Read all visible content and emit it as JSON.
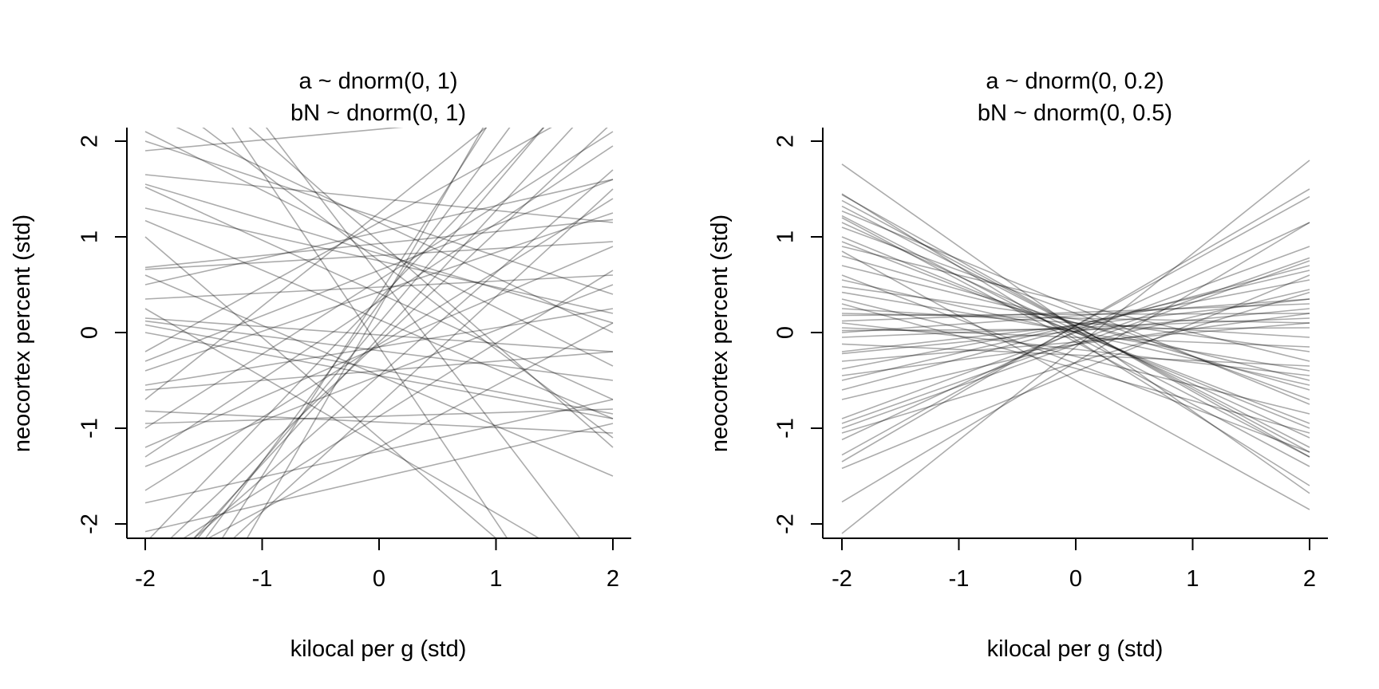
{
  "chart_data": [
    {
      "type": "line",
      "title": [
        "a ~ dnorm(0, 1)",
        "bN ~ dnorm(0, 1)"
      ],
      "xlabel": "kilocal per g (std)",
      "ylabel": "neocortex percent (std)",
      "xlim": [
        -2,
        2
      ],
      "ylim": [
        -2,
        2
      ],
      "xticks": [
        "-2",
        "-1",
        "0",
        "1",
        "2"
      ],
      "yticks": [
        "-2",
        "-1",
        "0",
        "1",
        "2"
      ],
      "grid": false,
      "line_color": "#000000",
      "line_opacity": 0.33,
      "series": [
        {
          "x": [
            -2,
            2
          ],
          "y": [
            1.9,
            2.35
          ]
        },
        {
          "x": [
            -2,
            2
          ],
          "y": [
            1.65,
            1.15
          ]
        },
        {
          "x": [
            -2,
            2
          ],
          "y": [
            1.55,
            0.1
          ]
        },
        {
          "x": [
            -2,
            2
          ],
          "y": [
            1.52,
            -0.7
          ]
        },
        {
          "x": [
            -2,
            2
          ],
          "y": [
            1.17,
            -0.9
          ]
        },
        {
          "x": [
            -2,
            2
          ],
          "y": [
            0.68,
            1.18
          ]
        },
        {
          "x": [
            -2,
            2
          ],
          "y": [
            0.66,
            0.95
          ]
        },
        {
          "x": [
            -2,
            2
          ],
          "y": [
            0.6,
            -1.5
          ]
        },
        {
          "x": [
            -2,
            2
          ],
          "y": [
            0.35,
            0.6
          ]
        },
        {
          "x": [
            -2,
            2
          ],
          "y": [
            0.25,
            -2.6
          ]
        },
        {
          "x": [
            -2,
            2
          ],
          "y": [
            0.15,
            -0.2
          ]
        },
        {
          "x": [
            -2,
            2
          ],
          "y": [
            0.12,
            -0.5
          ]
        },
        {
          "x": [
            -2,
            2
          ],
          "y": [
            0.08,
            -0.85
          ]
        },
        {
          "x": [
            -2,
            2
          ],
          "y": [
            -0.3,
            1.6
          ]
        },
        {
          "x": [
            -2,
            2
          ],
          "y": [
            -0.4,
            1.25
          ]
        },
        {
          "x": [
            -2,
            2
          ],
          "y": [
            -0.55,
            0.25
          ]
        },
        {
          "x": [
            -2,
            2
          ],
          "y": [
            -0.82,
            -1.05
          ]
        },
        {
          "x": [
            -2,
            2
          ],
          "y": [
            -0.95,
            -0.8
          ]
        },
        {
          "x": [
            -2,
            2
          ],
          "y": [
            -1.0,
            2.1
          ]
        },
        {
          "x": [
            -2,
            2
          ],
          "y": [
            -1.3,
            1.95
          ]
        },
        {
          "x": [
            -2,
            2
          ],
          "y": [
            -1.4,
            0.5
          ]
        },
        {
          "x": [
            -2,
            2
          ],
          "y": [
            -1.65,
            1.4
          ]
        },
        {
          "x": [
            -2,
            2
          ],
          "y": [
            -1.78,
            -0.7
          ]
        },
        {
          "x": [
            -2,
            2
          ],
          "y": [
            -2.08,
            -0.95
          ]
        },
        {
          "x": [
            -2,
            2
          ],
          "y": [
            -2.4,
            0.65
          ]
        },
        {
          "x": [
            -2,
            2
          ],
          "y": [
            -2.5,
            0.1
          ]
        },
        {
          "x": [
            -2,
            2
          ],
          "y": [
            -2.6,
            1.7
          ]
        },
        {
          "x": [
            -2,
            2
          ],
          "y": [
            -2.7,
            2.6
          ]
        },
        {
          "x": [
            -2,
            2
          ],
          "y": [
            -2.8,
            3.0
          ]
        },
        {
          "x": [
            -2,
            2
          ],
          "y": [
            2.1,
            -0.35
          ]
        },
        {
          "x": [
            -2,
            2
          ],
          "y": [
            2.3,
            0.0
          ]
        },
        {
          "x": [
            -2,
            2
          ],
          "y": [
            2.6,
            -1.1
          ]
        },
        {
          "x": [
            -2,
            2
          ],
          "y": [
            3.1,
            -1.2
          ]
        },
        {
          "x": [
            -2,
            2
          ],
          "y": [
            2.0,
            0.4
          ]
        },
        {
          "x": [
            -2,
            2
          ],
          "y": [
            -0.2,
            2.5
          ]
        },
        {
          "x": [
            -2,
            2
          ],
          "y": [
            -0.7,
            3.2
          ]
        },
        {
          "x": [
            -2,
            2
          ],
          "y": [
            1.0,
            -3.2
          ]
        },
        {
          "x": [
            -2,
            2
          ],
          "y": [
            -3.0,
            3.6
          ]
        },
        {
          "x": [
            -2,
            2
          ],
          "y": [
            -3.4,
            4.2
          ]
        },
        {
          "x": [
            -2,
            2
          ],
          "y": [
            3.5,
            -3.8
          ]
        },
        {
          "x": [
            -2,
            2
          ],
          "y": [
            -3.0,
            1.5
          ]
        },
        {
          "x": [
            -2,
            2
          ],
          "y": [
            3.8,
            -2.6
          ]
        },
        {
          "x": [
            -2,
            2
          ],
          "y": [
            -2.2,
            2.9
          ]
        },
        {
          "x": [
            -2,
            2
          ],
          "y": [
            -1.2,
            0.9
          ]
        },
        {
          "x": [
            -2,
            2
          ],
          "y": [
            -0.6,
            -0.2
          ]
        },
        {
          "x": [
            -2,
            2
          ],
          "y": [
            0.0,
            -0.9
          ]
        },
        {
          "x": [
            -2,
            2
          ],
          "y": [
            1.3,
            0.2
          ]
        },
        {
          "x": [
            -2,
            2
          ],
          "y": [
            -2.4,
            2.2
          ]
        },
        {
          "x": [
            -2,
            2
          ],
          "y": [
            -4.0,
            4.5
          ]
        },
        {
          "x": [
            -2,
            2
          ],
          "y": [
            0.5,
            1.6
          ]
        }
      ]
    },
    {
      "type": "line",
      "title": [
        "a ~ dnorm(0, 0.2)",
        "bN ~ dnorm(0, 0.5)"
      ],
      "xlabel": "kilocal per g (std)",
      "ylabel": "neocortex percent (std)",
      "xlim": [
        -2,
        2
      ],
      "ylim": [
        -2,
        2
      ],
      "xticks": [
        "-2",
        "-1",
        "0",
        "1",
        "2"
      ],
      "yticks": [
        "-2",
        "-1",
        "0",
        "1",
        "2"
      ],
      "grid": false,
      "line_color": "#000000",
      "line_opacity": 0.33,
      "series": [
        {
          "x": [
            -2,
            2
          ],
          "y": [
            1.76,
            -1.68
          ]
        },
        {
          "x": [
            -2,
            2
          ],
          "y": [
            1.44,
            -1.3
          ]
        },
        {
          "x": [
            -2,
            2
          ],
          "y": [
            1.38,
            -1.25
          ]
        },
        {
          "x": [
            -2,
            2
          ],
          "y": [
            1.32,
            -1.2
          ]
        },
        {
          "x": [
            -2,
            2
          ],
          "y": [
            1.27,
            -0.75
          ]
        },
        {
          "x": [
            -2,
            2
          ],
          "y": [
            1.22,
            -1.3
          ]
        },
        {
          "x": [
            -2,
            2
          ],
          "y": [
            1.15,
            -1.1
          ]
        },
        {
          "x": [
            -2,
            2
          ],
          "y": [
            1.0,
            -1.0
          ]
        },
        {
          "x": [
            -2,
            2
          ],
          "y": [
            0.95,
            -0.95
          ]
        },
        {
          "x": [
            -2,
            2
          ],
          "y": [
            0.85,
            -1.85
          ]
        },
        {
          "x": [
            -2,
            2
          ],
          "y": [
            0.8,
            -0.6
          ]
        },
        {
          "x": [
            -2,
            2
          ],
          "y": [
            0.7,
            -0.5
          ]
        },
        {
          "x": [
            -2,
            2
          ],
          "y": [
            0.55,
            -0.55
          ]
        },
        {
          "x": [
            -2,
            2
          ],
          "y": [
            0.48,
            -0.2
          ]
        },
        {
          "x": [
            -2,
            2
          ],
          "y": [
            0.42,
            -0.4
          ]
        },
        {
          "x": [
            -2,
            2
          ],
          "y": [
            0.35,
            -0.85
          ]
        },
        {
          "x": [
            -2,
            2
          ],
          "y": [
            0.25,
            -0.05
          ]
        },
        {
          "x": [
            -2,
            2
          ],
          "y": [
            0.18,
            0.2
          ]
        },
        {
          "x": [
            -2,
            2
          ],
          "y": [
            0.12,
            0.3
          ]
        },
        {
          "x": [
            -2,
            2
          ],
          "y": [
            0.05,
            -0.15
          ]
        },
        {
          "x": [
            -2,
            2
          ],
          "y": [
            0.02,
            0.05
          ]
        },
        {
          "x": [
            -2,
            2
          ],
          "y": [
            -0.05,
            0.15
          ]
        },
        {
          "x": [
            -2,
            2
          ],
          "y": [
            -0.12,
            -0.35
          ]
        },
        {
          "x": [
            -2,
            2
          ],
          "y": [
            -0.2,
            0.35
          ]
        },
        {
          "x": [
            -2,
            2
          ],
          "y": [
            -0.22,
            0.25
          ]
        },
        {
          "x": [
            -2,
            2
          ],
          "y": [
            -0.38,
            0.55
          ]
        },
        {
          "x": [
            -2,
            2
          ],
          "y": [
            -0.5,
            0.65
          ]
        },
        {
          "x": [
            -2,
            2
          ],
          "y": [
            -0.6,
            0.7
          ]
        },
        {
          "x": [
            -2,
            2
          ],
          "y": [
            -0.9,
            0.9
          ]
        },
        {
          "x": [
            -2,
            2
          ],
          "y": [
            -0.95,
            0.78
          ]
        },
        {
          "x": [
            -2,
            2
          ],
          "y": [
            -1.05,
            0.42
          ]
        },
        {
          "x": [
            -2,
            2
          ],
          "y": [
            -1.12,
            1.15
          ]
        },
        {
          "x": [
            -2,
            2
          ],
          "y": [
            -1.28,
            1.42
          ]
        },
        {
          "x": [
            -2,
            2
          ],
          "y": [
            -1.35,
            1.5
          ]
        },
        {
          "x": [
            -2,
            2
          ],
          "y": [
            -1.42,
            0.6
          ]
        },
        {
          "x": [
            -2,
            2
          ],
          "y": [
            -1.77,
            1.15
          ]
        },
        {
          "x": [
            -2,
            2
          ],
          "y": [
            -2.1,
            1.8
          ]
        },
        {
          "x": [
            -2,
            2
          ],
          "y": [
            1.45,
            -1.6
          ]
        },
        {
          "x": [
            -2,
            2
          ],
          "y": [
            0.9,
            -0.3
          ]
        },
        {
          "x": [
            -2,
            2
          ],
          "y": [
            0.1,
            -0.45
          ]
        },
        {
          "x": [
            -2,
            2
          ],
          "y": [
            -0.3,
            0.1
          ]
        },
        {
          "x": [
            -2,
            2
          ],
          "y": [
            0.0,
            0.35
          ]
        },
        {
          "x": [
            -2,
            2
          ],
          "y": [
            0.6,
            -1.25
          ]
        },
        {
          "x": [
            -2,
            2
          ],
          "y": [
            1.1,
            -0.7
          ]
        },
        {
          "x": [
            -2,
            2
          ],
          "y": [
            -0.7,
            0.45
          ]
        },
        {
          "x": [
            -2,
            2
          ],
          "y": [
            0.3,
            -1.05
          ]
        },
        {
          "x": [
            -2,
            2
          ],
          "y": [
            -1.0,
            0.75
          ]
        },
        {
          "x": [
            -2,
            2
          ],
          "y": [
            1.2,
            -1.4
          ]
        },
        {
          "x": [
            -2,
            2
          ],
          "y": [
            0.2,
            0.1
          ]
        },
        {
          "x": [
            -2,
            2
          ],
          "y": [
            -0.45,
            0.2
          ]
        }
      ]
    }
  ]
}
